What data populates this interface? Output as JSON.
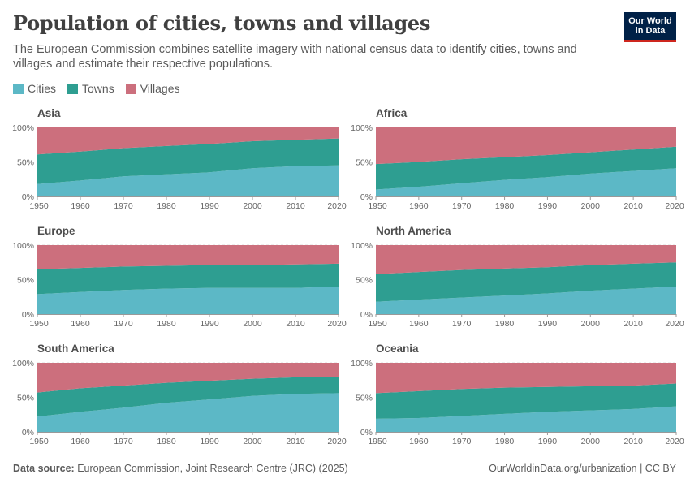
{
  "header": {
    "title": "Population of cities, towns and villages",
    "subtitle": "The European Commission combines satellite imagery with national census data to identify cities, towns and villages and estimate their respective populations."
  },
  "logo": {
    "line1": "Our World",
    "line2": "in Data"
  },
  "legend": [
    {
      "label": "Cities",
      "color": "#5cb8c6"
    },
    {
      "label": "Towns",
      "color": "#2e9e91"
    },
    {
      "label": "Villages",
      "color": "#cc6f7d"
    }
  ],
  "footer": {
    "source_label": "Data source:",
    "source_text": "European Commission, Joint Research Centre (JRC) (2025)",
    "right_text": "OurWorldinData.org/urbanization | CC BY"
  },
  "chart_data": [
    {
      "type": "area",
      "stacked": true,
      "title": "Asia",
      "x": [
        1950,
        1960,
        1970,
        1980,
        1990,
        2000,
        2010,
        2020
      ],
      "yticks": [
        "0%",
        "50%",
        "100%"
      ],
      "ylim": [
        0,
        100
      ],
      "series": [
        {
          "name": "Cities",
          "values": [
            18,
            23,
            29,
            32,
            35,
            41,
            44,
            45
          ]
        },
        {
          "name": "Towns",
          "values": [
            43,
            42,
            41,
            41,
            41,
            39,
            38,
            39
          ]
        },
        {
          "name": "Villages",
          "values": [
            39,
            35,
            30,
            27,
            24,
            20,
            18,
            16
          ]
        }
      ]
    },
    {
      "type": "area",
      "stacked": true,
      "title": "Africa",
      "x": [
        1950,
        1960,
        1970,
        1980,
        1990,
        2000,
        2010,
        2020
      ],
      "yticks": [
        "0%",
        "50%",
        "100%"
      ],
      "ylim": [
        0,
        100
      ],
      "series": [
        {
          "name": "Cities",
          "values": [
            10,
            14,
            19,
            24,
            28,
            33,
            37,
            41
          ]
        },
        {
          "name": "Towns",
          "values": [
            37,
            36,
            35,
            33,
            32,
            31,
            31,
            31
          ]
        },
        {
          "name": "Villages",
          "values": [
            53,
            50,
            46,
            43,
            40,
            36,
            32,
            28
          ]
        }
      ]
    },
    {
      "type": "area",
      "stacked": true,
      "title": "Europe",
      "x": [
        1950,
        1960,
        1970,
        1980,
        1990,
        2000,
        2010,
        2020
      ],
      "yticks": [
        "0%",
        "50%",
        "100%"
      ],
      "ylim": [
        0,
        100
      ],
      "series": [
        {
          "name": "Cities",
          "values": [
            29,
            32,
            35,
            37,
            38,
            38,
            38,
            40
          ]
        },
        {
          "name": "Towns",
          "values": [
            36,
            35,
            34,
            33,
            33,
            33,
            34,
            33
          ]
        },
        {
          "name": "Villages",
          "values": [
            35,
            33,
            31,
            30,
            29,
            29,
            28,
            27
          ]
        }
      ]
    },
    {
      "type": "area",
      "stacked": true,
      "title": "North America",
      "x": [
        1950,
        1960,
        1970,
        1980,
        1990,
        2000,
        2010,
        2020
      ],
      "yticks": [
        "0%",
        "50%",
        "100%"
      ],
      "ylim": [
        0,
        100
      ],
      "series": [
        {
          "name": "Cities",
          "values": [
            18,
            21,
            24,
            27,
            30,
            34,
            37,
            40
          ]
        },
        {
          "name": "Towns",
          "values": [
            40,
            40,
            40,
            39,
            38,
            37,
            36,
            35
          ]
        },
        {
          "name": "Villages",
          "values": [
            42,
            39,
            36,
            34,
            32,
            29,
            27,
            25
          ]
        }
      ]
    },
    {
      "type": "area",
      "stacked": true,
      "title": "South America",
      "x": [
        1950,
        1960,
        1970,
        1980,
        1990,
        2000,
        2010,
        2020
      ],
      "yticks": [
        "0%",
        "50%",
        "100%"
      ],
      "ylim": [
        0,
        100
      ],
      "series": [
        {
          "name": "Cities",
          "values": [
            22,
            29,
            35,
            42,
            47,
            52,
            55,
            56
          ]
        },
        {
          "name": "Towns",
          "values": [
            35,
            34,
            32,
            29,
            27,
            25,
            24,
            24
          ]
        },
        {
          "name": "Villages",
          "values": [
            43,
            37,
            33,
            29,
            26,
            23,
            21,
            20
          ]
        }
      ]
    },
    {
      "type": "area",
      "stacked": true,
      "title": "Oceania",
      "x": [
        1950,
        1960,
        1970,
        1980,
        1990,
        2000,
        2010,
        2020
      ],
      "yticks": [
        "0%",
        "50%",
        "100%"
      ],
      "ylim": [
        0,
        100
      ],
      "series": [
        {
          "name": "Cities",
          "values": [
            19,
            20,
            23,
            26,
            29,
            31,
            33,
            37
          ]
        },
        {
          "name": "Towns",
          "values": [
            37,
            39,
            39,
            38,
            36,
            35,
            34,
            33
          ]
        },
        {
          "name": "Villages",
          "values": [
            44,
            41,
            38,
            36,
            35,
            34,
            33,
            30
          ]
        }
      ]
    }
  ]
}
